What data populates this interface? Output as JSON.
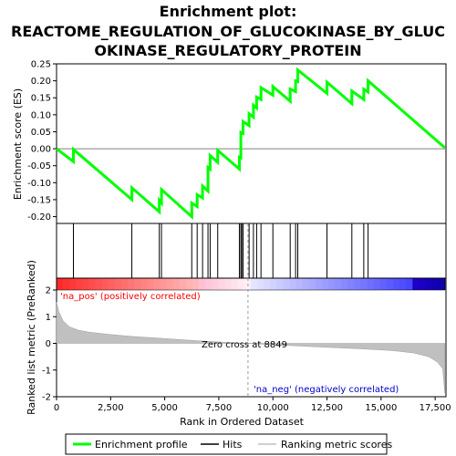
{
  "chart_data": {
    "type": "line",
    "title_lines": [
      "Enrichment plot:",
      "REACTOME_REGULATION_OF_GLUCOKINASE_BY_GLUC",
      "OKINASE_REGULATORY_PROTEIN"
    ],
    "es_panel": {
      "ylabel": "Enrichment score (ES)",
      "ylim": [
        -0.22,
        0.25
      ],
      "yticks": [
        0.25,
        0.2,
        0.15,
        0.1,
        0.05,
        0.0,
        -0.05,
        -0.1,
        -0.15,
        -0.2
      ],
      "ytick_labels": [
        "0.25",
        "0.20",
        "0.15",
        "0.10",
        "0.05",
        "0.00",
        "-0.05",
        "-0.10",
        "-0.15",
        "-0.20"
      ],
      "series_name": "Enrichment profile",
      "color": "#00ff00",
      "points": [
        [
          0,
          0.0
        ],
        [
          780,
          -0.038
        ],
        [
          780,
          -0.002
        ],
        [
          3480,
          -0.15
        ],
        [
          3480,
          -0.115
        ],
        [
          4750,
          -0.186
        ],
        [
          4750,
          -0.152
        ],
        [
          4850,
          -0.16
        ],
        [
          4850,
          -0.12
        ],
        [
          6250,
          -0.2
        ],
        [
          6250,
          -0.16
        ],
        [
          6500,
          -0.17
        ],
        [
          6500,
          -0.135
        ],
        [
          6750,
          -0.145
        ],
        [
          6750,
          -0.11
        ],
        [
          7000,
          -0.125
        ],
        [
          7000,
          -0.055
        ],
        [
          7100,
          -0.06
        ],
        [
          7100,
          -0.02
        ],
        [
          7450,
          -0.04
        ],
        [
          7450,
          -0.005
        ],
        [
          8450,
          -0.06
        ],
        [
          8450,
          -0.025
        ],
        [
          8520,
          -0.027
        ],
        [
          8520,
          0.048
        ],
        [
          8620,
          0.045
        ],
        [
          8620,
          0.08
        ],
        [
          8900,
          0.068
        ],
        [
          8900,
          0.103
        ],
        [
          9100,
          0.093
        ],
        [
          9100,
          0.128
        ],
        [
          9250,
          0.12
        ],
        [
          9250,
          0.152
        ],
        [
          9450,
          0.145
        ],
        [
          9450,
          0.18
        ],
        [
          10000,
          0.158
        ],
        [
          10000,
          0.183
        ],
        [
          10800,
          0.14
        ],
        [
          10800,
          0.176
        ],
        [
          11050,
          0.168
        ],
        [
          11050,
          0.2
        ],
        [
          11150,
          0.198
        ],
        [
          11150,
          0.232
        ],
        [
          12500,
          0.163
        ],
        [
          12500,
          0.196
        ],
        [
          13650,
          0.133
        ],
        [
          13650,
          0.17
        ],
        [
          14200,
          0.145
        ],
        [
          14200,
          0.175
        ],
        [
          14400,
          0.167
        ],
        [
          14400,
          0.2
        ],
        [
          17950,
          0.003
        ]
      ]
    },
    "hits": {
      "series_name": "Hits",
      "positions": [
        780,
        3480,
        4750,
        4850,
        6250,
        6500,
        6750,
        7000,
        7100,
        7450,
        8450,
        8520,
        8560,
        8620,
        8900,
        9100,
        9250,
        9450,
        10000,
        10800,
        11050,
        11150,
        12500,
        13650,
        14200,
        14400
      ]
    },
    "ranked_panel": {
      "ylabel": "Ranked list metric (PreRanked)",
      "ylim": [
        -2,
        2
      ],
      "yticks": [
        2,
        1,
        0,
        -1,
        -2
      ],
      "ytick_labels": [
        "2",
        "1",
        "0",
        "-1",
        "-2"
      ],
      "series_name": "Ranking metric scores",
      "zero_cross_label": "Zero cross at 8849",
      "zero_cross": 8849,
      "pos_label": "'na_pos' (positively correlated)",
      "neg_label": "'na_neg' (negatively correlated)",
      "profile": [
        [
          0,
          1.55
        ],
        [
          100,
          1.2
        ],
        [
          300,
          0.85
        ],
        [
          600,
          0.62
        ],
        [
          1000,
          0.5
        ],
        [
          1500,
          0.42
        ],
        [
          2500,
          0.33
        ],
        [
          3500,
          0.26
        ],
        [
          5000,
          0.18
        ],
        [
          6500,
          0.1
        ],
        [
          8000,
          0.03
        ],
        [
          8849,
          0.0
        ],
        [
          10000,
          -0.05
        ],
        [
          12000,
          -0.13
        ],
        [
          14000,
          -0.2
        ],
        [
          15500,
          -0.27
        ],
        [
          16500,
          -0.36
        ],
        [
          17200,
          -0.5
        ],
        [
          17600,
          -0.7
        ],
        [
          17850,
          -0.95
        ],
        [
          17950,
          -1.88
        ]
      ]
    },
    "xaxis": {
      "xlabel": "Rank in Ordered Dataset",
      "xlim": [
        0,
        18000
      ],
      "xticks": [
        0,
        2500,
        5000,
        7500,
        10000,
        12500,
        15000,
        17500
      ],
      "xtick_labels": [
        "0",
        "2,500",
        "5,000",
        "7,500",
        "10,000",
        "12,500",
        "15,000",
        "17,500"
      ]
    },
    "colorbar": {
      "max_rank": 17950,
      "zero_cross": 8849
    },
    "legend": {
      "items": [
        {
          "label": "Enrichment profile",
          "color": "#00ff00",
          "kind": "thick-line"
        },
        {
          "label": "Hits",
          "color": "#000000",
          "kind": "line"
        },
        {
          "label": "Ranking metric scores",
          "color": "#c0c0c0",
          "kind": "line"
        }
      ]
    },
    "colors": {
      "es_line": "#00ff00",
      "hit": "#000000",
      "ranked_fill": "#c0c0c0",
      "zero_line": "#a0a0a0",
      "pos_text": "#ff0000",
      "neg_text": "#0000cc",
      "grid_zero": "#808080"
    }
  }
}
